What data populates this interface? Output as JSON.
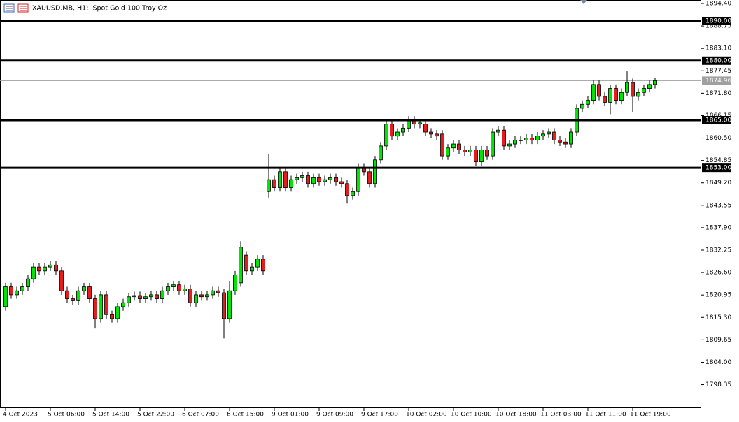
{
  "chart_data": {
    "type": "candlestick",
    "title": "XAUUSD.MB, H1:  Spot Gold 100 Troy Oz",
    "categories": [
      "4 Oct 2023",
      null,
      null,
      null,
      null,
      null,
      null,
      null,
      "5 Oct 06:00",
      null,
      null,
      null,
      null,
      null,
      null,
      null,
      "5 Oct 14:00",
      null,
      null,
      null,
      null,
      null,
      null,
      null,
      "5 Oct 22:00",
      null,
      null,
      null,
      null,
      null,
      null,
      null,
      "6 Oct 07:00",
      null,
      null,
      null,
      null,
      null,
      null,
      null,
      "6 Oct 15:00",
      null,
      null,
      null,
      null,
      null,
      null,
      null,
      "9 Oct 01:00",
      null,
      null,
      null,
      null,
      null,
      null,
      null,
      "9 Oct 09:00",
      null,
      null,
      null,
      null,
      null,
      null,
      null,
      "9 Oct 17:00",
      null,
      null,
      null,
      null,
      null,
      null,
      null,
      "10 Oct 02:00",
      null,
      null,
      null,
      null,
      null,
      null,
      null,
      "10 Oct 10:00",
      null,
      null,
      null,
      null,
      null,
      null,
      null,
      "10 Oct 18:00",
      null,
      null,
      null,
      null,
      null,
      null,
      null,
      "11 Oct 03:00",
      null,
      null,
      null,
      null,
      null,
      null,
      null,
      "11 Oct 11:00",
      null,
      null,
      null,
      null,
      null,
      null,
      null,
      "11 Oct 19:00",
      null,
      null,
      null,
      null
    ],
    "open": [
      1818,
      1823,
      1821,
      1822,
      1823,
      1825,
      1828,
      1827,
      1828,
      1828.5,
      1827,
      1822,
      1820,
      1819.5,
      1822,
      1823,
      1820,
      1815,
      1821,
      1816,
      1815,
      1818,
      1819,
      1820.5,
      1820.8,
      1820,
      1820.5,
      1821,
      1820,
      1822,
      1823,
      1823.5,
      1822,
      1822.5,
      1819,
      1821,
      1820.5,
      1821,
      1822,
      1821.5,
      1815,
      1822,
      1824,
      1831,
      1827,
      1828,
      1830,
      1847,
      1850,
      1848,
      1852,
      1848,
      1850,
      1850.5,
      1851,
      1849,
      1850.5,
      1849.5,
      1850,
      1850.5,
      1849.5,
      1849,
      1846,
      1847,
      1853,
      1852,
      1849,
      1855,
      1858.5,
      1864,
      1861,
      1862,
      1863,
      1865,
      1864,
      1864,
      1862,
      1861.5,
      1861.5,
      1856,
      1858,
      1859,
      1857.5,
      1857,
      1857.5,
      1854.5,
      1857.5,
      1856,
      1862,
      1862.5,
      1858.5,
      1859,
      1860,
      1860,
      1860.5,
      1860,
      1861,
      1861.5,
      1862,
      1860,
      1859.5,
      1859,
      1862,
      1868,
      1869,
      1870,
      1874,
      1871,
      1869.5,
      1873,
      1870,
      1872,
      1874.5,
      1871,
      1872,
      1873,
      1874
    ],
    "high": [
      1824,
      1824,
      1823,
      1824,
      1826,
      1829,
      1829,
      1829,
      1829.5,
      1829.5,
      1828,
      1823,
      1821,
      1823,
      1824,
      1824,
      1821,
      1822,
      1822,
      1817,
      1819,
      1820,
      1821.5,
      1821.8,
      1821.8,
      1821.5,
      1822,
      1822,
      1823,
      1824,
      1824.5,
      1824.5,
      1823.5,
      1823.5,
      1822,
      1822,
      1822,
      1823,
      1823,
      1822.5,
      1824.5,
      1827,
      1834.5,
      1832,
      1829,
      1831,
      1831,
      1856.5,
      1851,
      1853,
      1853,
      1851,
      1851.5,
      1852,
      1852,
      1851.5,
      1851.5,
      1851,
      1851.5,
      1851.5,
      1850.5,
      1850,
      1848,
      1854,
      1854,
      1853,
      1856,
      1859.5,
      1865,
      1865,
      1863,
      1864,
      1866,
      1866,
      1865,
      1865,
      1863,
      1862.5,
      1862.5,
      1859,
      1860,
      1860,
      1858.5,
      1858.5,
      1858.5,
      1858.5,
      1858.5,
      1863,
      1863.5,
      1863.5,
      1860,
      1861,
      1861,
      1861.5,
      1861.5,
      1862,
      1862.5,
      1863,
      1863,
      1861,
      1860.5,
      1863,
      1869,
      1870,
      1871,
      1875,
      1875,
      1872,
      1874,
      1874,
      1873,
      1877.3,
      1875.5,
      1873,
      1874,
      1875,
      1875.6
    ],
    "low": [
      1817,
      1820,
      1820,
      1821,
      1822,
      1824,
      1826,
      1826,
      1827,
      1826,
      1821,
      1819,
      1818.5,
      1818.5,
      1821,
      1819,
      1812.5,
      1814,
      1815,
      1814,
      1814,
      1817,
      1818,
      1819.5,
      1819,
      1819,
      1819.5,
      1819,
      1819,
      1821,
      1822,
      1821,
      1821,
      1818,
      1818,
      1819.5,
      1819.5,
      1820,
      1820.5,
      1810,
      1814,
      1821,
      1823,
      1826,
      1826,
      1827,
      1826,
      1845.5,
      1847,
      1847,
      1847,
      1847,
      1849,
      1849.5,
      1848,
      1848,
      1848.5,
      1848.5,
      1849,
      1848.5,
      1848,
      1844,
      1845,
      1846,
      1851,
      1848,
      1848,
      1854,
      1857.5,
      1860,
      1860,
      1861,
      1862,
      1863,
      1863,
      1861,
      1860.5,
      1860,
      1855,
      1855,
      1857,
      1856.5,
      1856,
      1856,
      1853.5,
      1853.5,
      1855,
      1855,
      1861,
      1857.5,
      1857.5,
      1858,
      1859,
      1859,
      1859,
      1859,
      1860,
      1860.5,
      1859,
      1858.5,
      1858,
      1858,
      1861,
      1867,
      1868,
      1869,
      1870,
      1868.5,
      1866.5,
      1869,
      1869,
      1871,
      1867,
      1870,
      1871,
      1872,
      1873
    ],
    "close": [
      1823,
      1821,
      1822,
      1823,
      1825,
      1828,
      1827,
      1828,
      1828.5,
      1827,
      1822,
      1820,
      1819.5,
      1822,
      1823,
      1820,
      1815,
      1821,
      1816,
      1815,
      1818,
      1819,
      1820.5,
      1820.8,
      1820,
      1820.5,
      1821,
      1820,
      1822,
      1823,
      1823.5,
      1822,
      1822.5,
      1819,
      1821,
      1820.5,
      1821,
      1822,
      1821.5,
      1815,
      1822,
      1826,
      1833,
      1827,
      1828,
      1830,
      1827,
      1850,
      1848,
      1852,
      1848,
      1850,
      1850.5,
      1851,
      1849,
      1850.5,
      1849.5,
      1850,
      1850.5,
      1849.5,
      1849,
      1846,
      1847,
      1853,
      1852,
      1849,
      1855,
      1858.5,
      1864,
      1861,
      1862,
      1863,
      1865,
      1864,
      1864.3,
      1862,
      1861.5,
      1861,
      1856,
      1858,
      1859,
      1857.5,
      1857,
      1857.5,
      1854.5,
      1857.5,
      1856,
      1862,
      1862.5,
      1858.5,
      1859,
      1860,
      1860,
      1860.5,
      1860,
      1861,
      1861.5,
      1862,
      1860,
      1859.5,
      1859,
      1862,
      1868,
      1869,
      1870,
      1874,
      1871,
      1869.5,
      1873,
      1870,
      1872,
      1874.5,
      1871,
      1872,
      1873,
      1874,
      1874.96
    ],
    "up_color": "#00e600",
    "down_color": "#e41e1e",
    "ylim": [
      1792.46,
      1895.28
    ],
    "yticks": [
      {
        "value": 1894.4,
        "label": "1894.40"
      },
      1888.75,
      {
        "value": 1883.1,
        "label": "1883.10"
      },
      1877.45,
      {
        "value": 1871.8,
        "label": "1871.80"
      },
      1866.15,
      {
        "value": 1860.5,
        "label": "1860.50"
      },
      1854.85,
      {
        "value": 1849.2,
        "label": "1849.20"
      },
      1843.55,
      {
        "value": 1837.9,
        "label": "1837.90"
      },
      1832.25,
      {
        "value": 1826.6,
        "label": "1826.60"
      },
      1820.95,
      {
        "value": 1815.3,
        "label": "1815.30"
      },
      1809.65,
      {
        "value": 1804,
        "label": "1804.00"
      },
      1798.35
    ],
    "levels": [
      {
        "value": 1890,
        "label": "1890.00"
      },
      {
        "value": 1880,
        "label": "1880.00"
      },
      {
        "value": 1865,
        "label": "1865.00"
      },
      {
        "value": 1853,
        "label": "1853.00"
      }
    ],
    "last_price": {
      "value": 1874.96,
      "label": "1874.96"
    }
  }
}
